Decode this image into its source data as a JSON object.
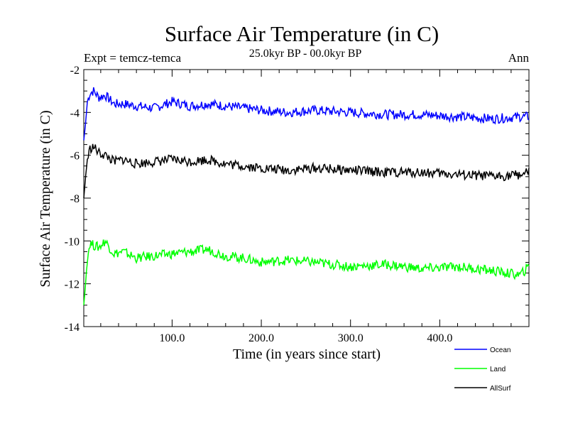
{
  "chart_data": {
    "type": "line",
    "title": "Surface Air Temperature (in C)",
    "subtitle": "25.0kyr BP - 00.0kyr BP",
    "left_note": "Expt = temcz-temca",
    "right_note": "Ann",
    "xlabel": "Time (in years since start)",
    "ylabel": "Surface Air Temperature (in C)",
    "xlim": [
      1,
      500
    ],
    "ylim": [
      -14,
      -2
    ],
    "xticks": [
      {
        "value": 100,
        "label": "100.0"
      },
      {
        "value": 200,
        "label": "200.0"
      },
      {
        "value": 300,
        "label": "300.0"
      },
      {
        "value": 400,
        "label": "400.0"
      }
    ],
    "yticks": [
      {
        "value": -2,
        "label": "-2"
      },
      {
        "value": -4,
        "label": "-4"
      },
      {
        "value": -6,
        "label": "-6"
      },
      {
        "value": -8,
        "label": "-8"
      },
      {
        "value": -10,
        "label": "-10"
      },
      {
        "value": -12,
        "label": "-12"
      },
      {
        "value": -14,
        "label": "-14"
      }
    ],
    "legend_position": "bottom-right",
    "series": [
      {
        "name": "Ocean",
        "color": "#0000ff",
        "x": [
          1,
          3,
          5,
          8,
          12,
          18,
          25,
          35,
          45,
          60,
          80,
          100,
          120,
          140,
          160,
          180,
          200,
          230,
          260,
          300,
          340,
          380,
          420,
          460,
          490,
          500
        ],
        "values": [
          -5.3,
          -4.5,
          -3.5,
          -3.1,
          -3.0,
          -3.3,
          -3.2,
          -3.6,
          -3.6,
          -3.7,
          -3.8,
          -3.5,
          -3.7,
          -3.6,
          -3.7,
          -3.8,
          -3.9,
          -4.0,
          -3.9,
          -4.0,
          -4.1,
          -4.1,
          -4.2,
          -4.3,
          -4.2,
          -4.2
        ]
      },
      {
        "name": "Land",
        "color": "#00ff00",
        "x": [
          1,
          3,
          5,
          8,
          12,
          18,
          25,
          35,
          45,
          60,
          80,
          100,
          120,
          140,
          160,
          180,
          200,
          230,
          260,
          300,
          340,
          380,
          420,
          460,
          490,
          500
        ],
        "values": [
          -13.0,
          -12.0,
          -10.8,
          -10.1,
          -10.2,
          -10.3,
          -10.0,
          -10.6,
          -10.5,
          -10.8,
          -10.7,
          -10.6,
          -10.5,
          -10.4,
          -10.7,
          -10.8,
          -11.0,
          -10.9,
          -11.0,
          -11.2,
          -11.1,
          -11.3,
          -11.2,
          -11.4,
          -11.6,
          -11.2
        ]
      },
      {
        "name": "AllSurf",
        "color": "#000000",
        "x": [
          1,
          3,
          5,
          8,
          12,
          18,
          25,
          35,
          45,
          60,
          80,
          100,
          120,
          140,
          160,
          180,
          200,
          230,
          260,
          300,
          340,
          380,
          420,
          460,
          490,
          500
        ],
        "values": [
          -8.0,
          -7.0,
          -6.2,
          -5.7,
          -5.6,
          -5.9,
          -6.0,
          -6.3,
          -6.2,
          -6.4,
          -6.3,
          -6.2,
          -6.3,
          -6.2,
          -6.4,
          -6.5,
          -6.6,
          -6.7,
          -6.6,
          -6.7,
          -6.8,
          -6.8,
          -6.9,
          -7.0,
          -6.9,
          -6.8
        ]
      }
    ]
  }
}
